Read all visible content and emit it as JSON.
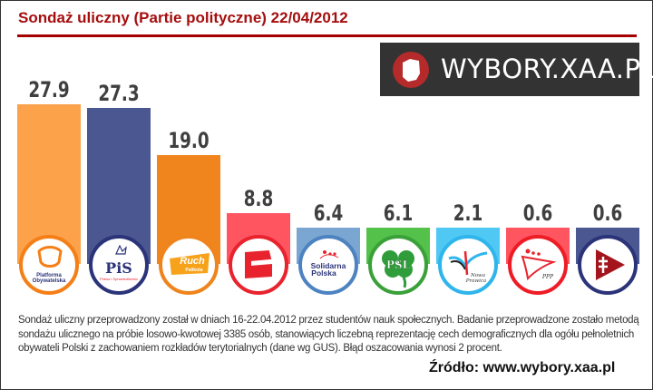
{
  "header": {
    "title": "Sondaż uliczny (Partie polityczne) 22/04/2012",
    "title_color": "#a50e0e"
  },
  "brand": {
    "text": "WYBORY.XAA.PL",
    "icon": "poland-map-icon",
    "background": "#333333",
    "icon_color": "#b52a2a"
  },
  "chart_data": {
    "type": "bar",
    "title": "Sondaż uliczny (Partie polityczne) 22/04/2012",
    "xlabel": "",
    "ylabel": "",
    "ylim": [
      0,
      30
    ],
    "grid": false,
    "legend": "party logos under each bar",
    "categories": [
      "Platforma Obywatelska",
      "Prawo i Sprawiedliwość",
      "Ruch Palikota",
      "SLD",
      "Solidarna Polska",
      "PSL",
      "Nowa Prawica",
      "PPP",
      "RAŚ"
    ],
    "values": [
      27.9,
      27.3,
      19.0,
      8.8,
      6.4,
      6.1,
      2.1,
      0.6,
      0.6
    ],
    "labels": [
      "27.9",
      "27.3",
      "19.0",
      "8.8",
      "6.4",
      "6.1",
      "2.1",
      "0.6",
      "0.6"
    ],
    "colors": [
      "#fba24a",
      "#4a5791",
      "#f0851e",
      "#fe5561",
      "#7ba6d2",
      "#53c14a",
      "#4fc8f4",
      "#fe5561",
      "#4a5791"
    ],
    "ring_colors": [
      "#f57f17",
      "#2b3379",
      "#ef841c",
      "#e8232e",
      "#4d83c0",
      "#3aa13a",
      "#2fb5ec",
      "#ee1c25",
      "#2b3379"
    ],
    "logo_texts": [
      "Platforma Obywatelska",
      "PiS",
      "Ruch Palikota",
      "",
      "Solidarna Polska",
      "PSL",
      "Nowa Prawica",
      "PPP",
      ""
    ]
  },
  "footer": {
    "description": "Sondaż uliczny przeprowadzony został w dniach 16-22.04.2012 przez studentów nauk społecznych. Badanie przeprowadzone zostało metodą sondażu ulicznego na próbie losowo-kwotowej 3385 osób, stanowiących liczebną reprezentację cech demograficznych dla ogółu pełnoletnich obywateli Polski z zachowaniem rozkładów terytorialnych (dane wg GUS). Błąd oszacowania wynosi 2 procent.",
    "source": "Źródło: www.wybory.xaa.pl"
  }
}
